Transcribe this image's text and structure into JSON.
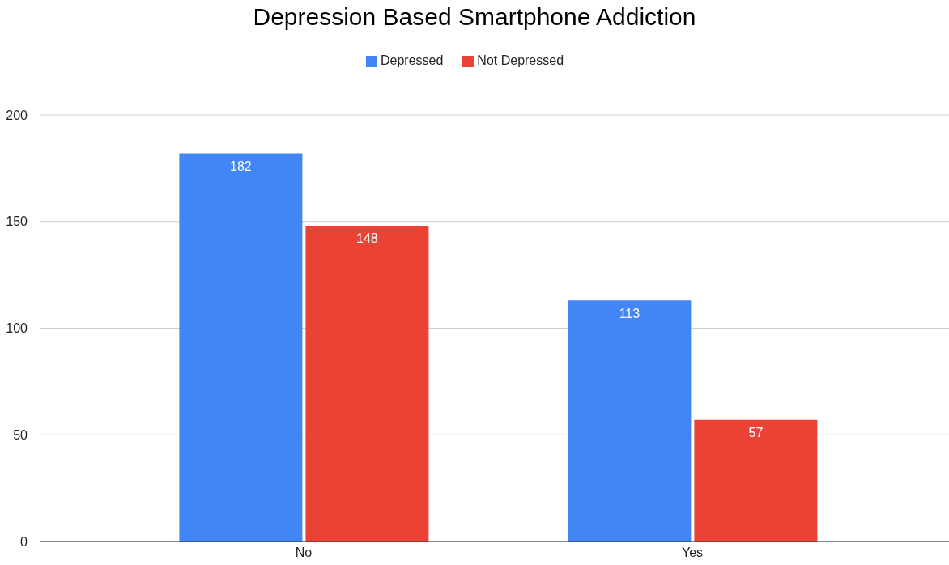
{
  "chart_data": {
    "type": "bar",
    "title": "Depression Based Smartphone Addiction",
    "categories": [
      "No",
      "Yes"
    ],
    "series": [
      {
        "name": "Depressed",
        "color": "#4285f4",
        "values": [
          182,
          113
        ]
      },
      {
        "name": "Not Depressed",
        "color": "#ea4335",
        "values": [
          148,
          57
        ]
      }
    ],
    "ylim": [
      0,
      200
    ],
    "yticks": [
      0,
      50,
      100,
      150,
      200
    ],
    "grid": "y",
    "legend": "top",
    "data_labels": true
  }
}
